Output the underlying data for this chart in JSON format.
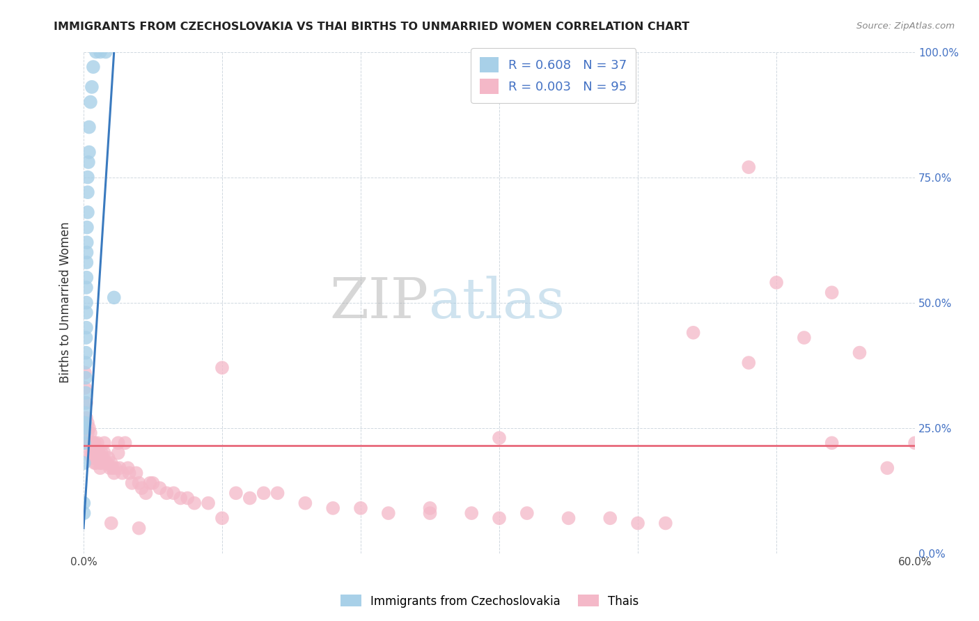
{
  "title": "IMMIGRANTS FROM CZECHOSLOVAKIA VS THAI BIRTHS TO UNMARRIED WOMEN CORRELATION CHART",
  "source": "Source: ZipAtlas.com",
  "ylabel": "Births to Unmarried Women",
  "legend_label1": "Immigrants from Czechoslovakia",
  "legend_label2": "Thais",
  "R1": "0.608",
  "N1": "37",
  "R2": "0.003",
  "N2": "95",
  "blue_color": "#a8d0e8",
  "pink_color": "#f4b8c8",
  "blue_line_color": "#3a7abf",
  "pink_line_color": "#e8687a",
  "watermark_zip": "ZIP",
  "watermark_atlas": "atlas",
  "blue_dots_x": [
    0.0002,
    0.0003,
    0.0004,
    0.0005,
    0.0006,
    0.0008,
    0.001,
    0.001,
    0.0012,
    0.0013,
    0.0015,
    0.0015,
    0.0016,
    0.0017,
    0.0018,
    0.002,
    0.002,
    0.002,
    0.002,
    0.0022,
    0.0022,
    0.0023,
    0.0024,
    0.0025,
    0.003,
    0.003,
    0.003,
    0.0035,
    0.004,
    0.004,
    0.005,
    0.006,
    0.007,
    0.009,
    0.012,
    0.016,
    0.022
  ],
  "blue_dots_y": [
    0.1,
    0.08,
    0.18,
    0.22,
    0.24,
    0.25,
    0.26,
    0.26,
    0.28,
    0.3,
    0.32,
    0.35,
    0.38,
    0.4,
    0.43,
    0.45,
    0.48,
    0.5,
    0.53,
    0.55,
    0.58,
    0.6,
    0.62,
    0.65,
    0.68,
    0.72,
    0.75,
    0.78,
    0.8,
    0.85,
    0.9,
    0.93,
    0.97,
    1.0,
    1.0,
    1.0,
    0.51
  ],
  "pink_dots_x": [
    0.001,
    0.001,
    0.002,
    0.002,
    0.003,
    0.003,
    0.003,
    0.004,
    0.004,
    0.004,
    0.005,
    0.005,
    0.006,
    0.006,
    0.006,
    0.007,
    0.007,
    0.007,
    0.008,
    0.008,
    0.008,
    0.009,
    0.009,
    0.01,
    0.01,
    0.011,
    0.011,
    0.012,
    0.012,
    0.013,
    0.013,
    0.014,
    0.015,
    0.015,
    0.016,
    0.017,
    0.018,
    0.019,
    0.02,
    0.021,
    0.022,
    0.023,
    0.025,
    0.025,
    0.026,
    0.028,
    0.03,
    0.032,
    0.033,
    0.035,
    0.038,
    0.04,
    0.042,
    0.045,
    0.048,
    0.05,
    0.055,
    0.06,
    0.065,
    0.07,
    0.075,
    0.08,
    0.09,
    0.1,
    0.11,
    0.12,
    0.13,
    0.14,
    0.16,
    0.18,
    0.2,
    0.22,
    0.25,
    0.28,
    0.3,
    0.32,
    0.35,
    0.38,
    0.4,
    0.42,
    0.44,
    0.48,
    0.5,
    0.52,
    0.54,
    0.56,
    0.58,
    0.6,
    0.48,
    0.54,
    0.3,
    0.25,
    0.1,
    0.04,
    0.02
  ],
  "pink_dots_y": [
    0.33,
    0.36,
    0.3,
    0.27,
    0.26,
    0.24,
    0.22,
    0.25,
    0.22,
    0.2,
    0.24,
    0.22,
    0.22,
    0.2,
    0.19,
    0.22,
    0.2,
    0.19,
    0.22,
    0.2,
    0.18,
    0.2,
    0.18,
    0.22,
    0.2,
    0.2,
    0.19,
    0.18,
    0.17,
    0.2,
    0.18,
    0.19,
    0.22,
    0.2,
    0.18,
    0.18,
    0.19,
    0.17,
    0.18,
    0.17,
    0.16,
    0.17,
    0.22,
    0.2,
    0.17,
    0.16,
    0.22,
    0.17,
    0.16,
    0.14,
    0.16,
    0.14,
    0.13,
    0.12,
    0.14,
    0.14,
    0.13,
    0.12,
    0.12,
    0.11,
    0.11,
    0.1,
    0.1,
    0.37,
    0.12,
    0.11,
    0.12,
    0.12,
    0.1,
    0.09,
    0.09,
    0.08,
    0.08,
    0.08,
    0.07,
    0.08,
    0.07,
    0.07,
    0.06,
    0.06,
    0.44,
    0.38,
    0.54,
    0.43,
    0.22,
    0.4,
    0.17,
    0.22,
    0.77,
    0.52,
    0.23,
    0.09,
    0.07,
    0.05,
    0.06
  ],
  "xlim": [
    0.0,
    0.6
  ],
  "ylim": [
    0.0,
    1.0
  ],
  "yticks": [
    0.0,
    0.25,
    0.5,
    0.75,
    1.0
  ],
  "ytick_labels": [
    "0.0%",
    "25.0%",
    "50.0%",
    "75.0%",
    "100.0%"
  ],
  "xticks": [
    0.0,
    0.1,
    0.2,
    0.3,
    0.4,
    0.5,
    0.6
  ],
  "xtick_labels_show": [
    "0.0%",
    "",
    "",
    "",
    "",
    "",
    "60.0%"
  ],
  "grid_color": "#d0d8e0",
  "background_color": "#ffffff",
  "pink_line_y": 0.215,
  "blue_line_x0": 0.0,
  "blue_line_y0": 0.05,
  "blue_line_x1": 0.022,
  "blue_line_y1": 1.0
}
